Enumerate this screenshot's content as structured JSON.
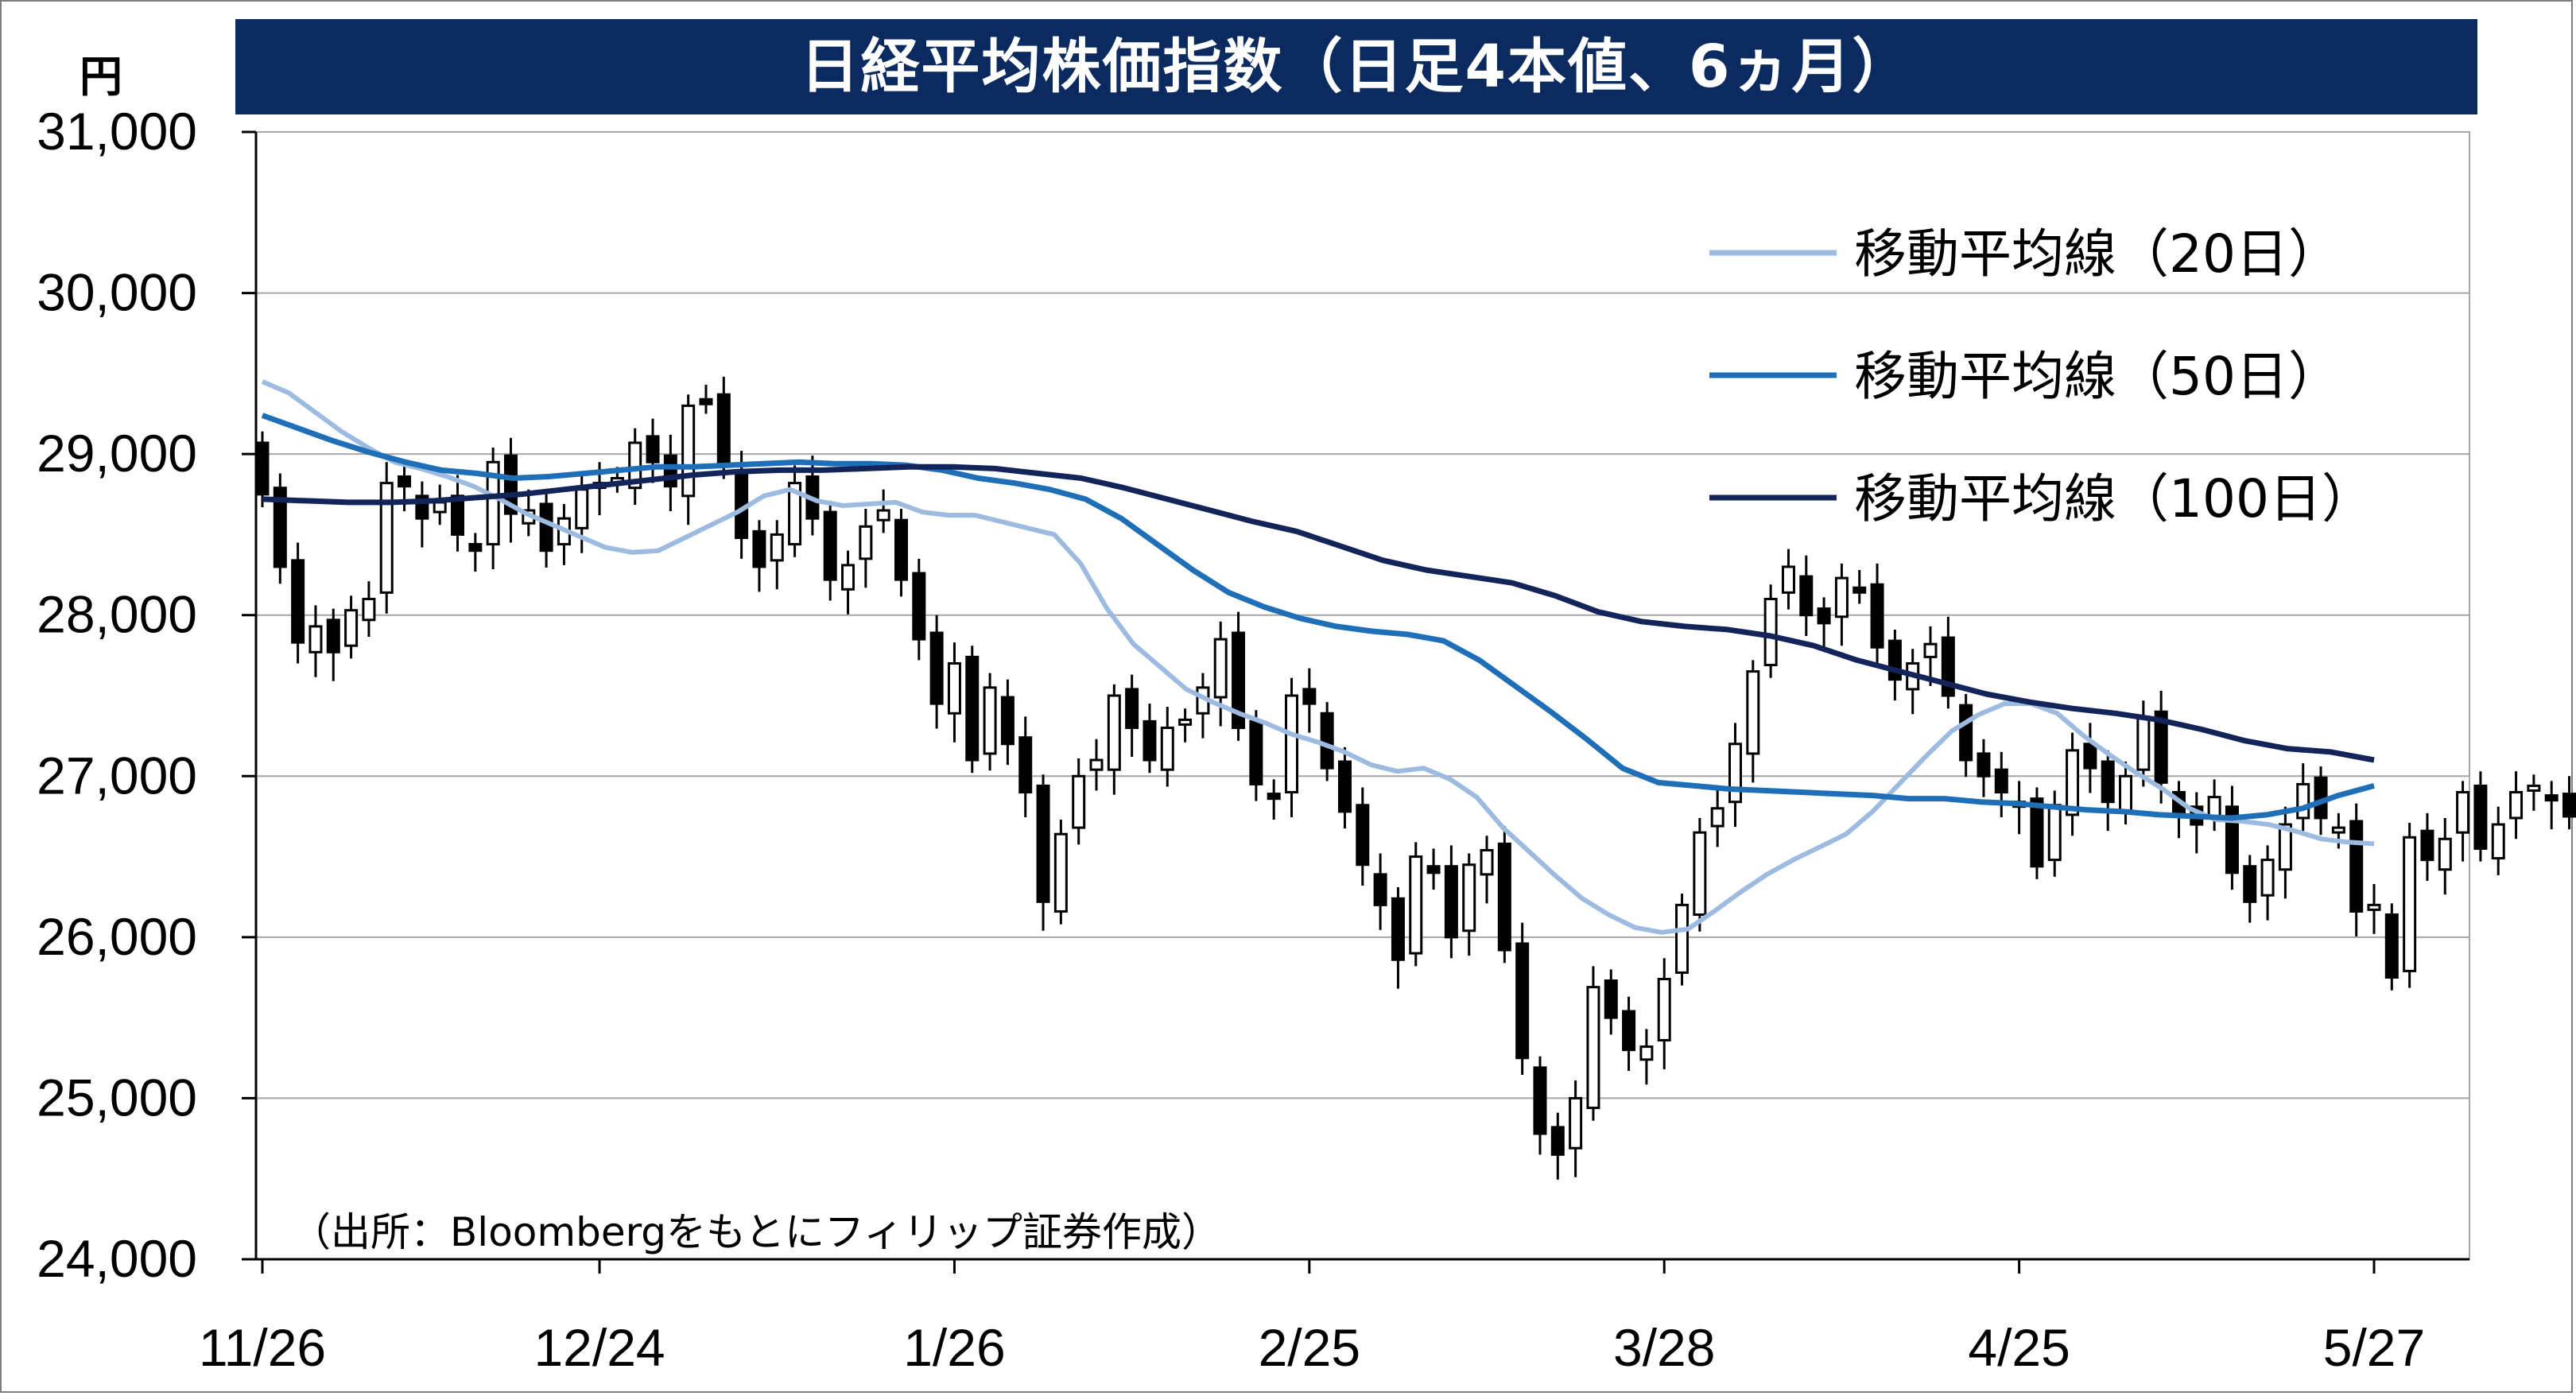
{
  "chart_data": {
    "type": "candlestick",
    "title": "日経平均株価指数（日足4本値、6ヵ月）",
    "unit_label": "円",
    "source_note": "（出所：Bloombergをもとにフィリップ証券作成）",
    "ylim": [
      24000,
      31000
    ],
    "y_ticks": [
      "31,000",
      "30,000",
      "29,000",
      "28,000",
      "27,000",
      "26,000",
      "25,000",
      "24,000"
    ],
    "y_tick_values": [
      31000,
      30000,
      29000,
      28000,
      27000,
      26000,
      25000,
      24000
    ],
    "x_tick_labels": [
      "11/26",
      "12/24",
      "1/26",
      "2/25",
      "3/28",
      "4/25",
      "5/27"
    ],
    "x_tick_index": [
      0,
      19,
      39,
      59,
      79,
      99,
      119
    ],
    "grid": true,
    "legend_position": "top-right",
    "colors": {
      "title_bg": "#0b2a5f",
      "ma20": "#9dbbe0",
      "ma50": "#1f6fb8",
      "ma100": "#12245a",
      "up_fill": "#ffffff",
      "down_fill": "#000000",
      "grid": "#a6a6a6"
    },
    "legend": [
      {
        "key": "ma20",
        "label": "移動平均線（20日）"
      },
      {
        "key": "ma50",
        "label": "移動平均線（50日）"
      },
      {
        "key": "ma100",
        "label": "移動平均線（100日）"
      }
    ],
    "closes": [
      28750,
      28300,
      27830,
      27930,
      27770,
      28030,
      28100,
      28820,
      28800,
      28600,
      28700,
      28500,
      28400,
      28950,
      28630,
      28650,
      28400,
      28600,
      28780,
      28800,
      28850,
      29070,
      28950,
      28800,
      29300,
      29330,
      28950,
      28480,
      28300,
      28500,
      28820,
      28600,
      28220,
      28310,
      28550,
      28650,
      28220,
      27850,
      27450,
      27700,
      27100,
      27550,
      27200,
      26900,
      26220,
      26640,
      27000,
      27100,
      27500,
      27300,
      27100,
      27300,
      27350,
      27550,
      27850,
      27300,
      26950,
      26860,
      27500,
      27450,
      27050,
      26780,
      26450,
      26200,
      25860,
      26500,
      26400,
      26000,
      26450,
      26540,
      25920,
      25250,
      24780,
      24650,
      25000,
      25690,
      25500,
      25300,
      25320,
      25740,
      26200,
      26650,
      26800,
      27200,
      27650,
      28100,
      28300,
      28000,
      27950,
      28230,
      28150,
      27800,
      27600,
      27700,
      27820,
      27500,
      27100,
      27000,
      26900,
      26820,
      26440,
      26820,
      27160,
      27050,
      26840,
      27000,
      27360,
      26960,
      26770,
      26700,
      26870,
      26400,
      26220,
      26480,
      26700,
      26950,
      26740,
      26680,
      26160,
      26200,
      25750,
      26620,
      26480,
      26610,
      26900,
      26550,
      26700,
      26900,
      26940,
      26850,
      26750,
      26860
    ],
    "ohlc_note": "closes estimated from candle tops/bottoms; highs/lows drawn as wicks",
    "ma20": [
      29450,
      29380,
      29260,
      29140,
      29040,
      28950,
      28910,
      28860,
      28800,
      28720,
      28630,
      28560,
      28490,
      28420,
      28390,
      28400,
      28480,
      28560,
      28640,
      28740,
      28780,
      28710,
      28680,
      28690,
      28700,
      28640,
      28620,
      28620,
      28580,
      28540,
      28500,
      28320,
      28040,
      27820,
      27680,
      27540,
      27460,
      27390,
      27330,
      27260,
      27210,
      27150,
      27070,
      27030,
      27050,
      26980,
      26870,
      26680,
      26530,
      26380,
      26240,
      26140,
      26060,
      26030,
      26050,
      26160,
      26280,
      26390,
      26480,
      26560,
      26640,
      26780,
      26950,
      27120,
      27280,
      27380,
      27450,
      27450,
      27390,
      27250,
      27130,
      27020,
      26920,
      26800,
      26730,
      26720,
      26700,
      26660,
      26610,
      26590,
      26580
    ],
    "ma50": [
      29240,
      29160,
      29080,
      29010,
      28950,
      28900,
      28880,
      28850,
      28860,
      28880,
      28900,
      28920,
      28920,
      28930,
      28940,
      28950,
      28940,
      28940,
      28930,
      28900,
      28850,
      28820,
      28780,
      28720,
      28600,
      28440,
      28280,
      28140,
      28050,
      27980,
      27930,
      27900,
      27880,
      27840,
      27720,
      27560,
      27400,
      27230,
      27050,
      26960,
      26940,
      26920,
      26910,
      26900,
      26890,
      26880,
      26860,
      26860,
      26840,
      26830,
      26810,
      26790,
      26780,
      26760,
      26750,
      26740,
      26760,
      26800,
      26880,
      26940
    ],
    "ma100": [
      28720,
      28710,
      28700,
      28700,
      28710,
      28730,
      28750,
      28780,
      28810,
      28840,
      28870,
      28890,
      28900,
      28900,
      28910,
      28920,
      28920,
      28910,
      28880,
      28850,
      28790,
      28720,
      28650,
      28580,
      28520,
      28430,
      28340,
      28280,
      28240,
      28200,
      28120,
      28020,
      27960,
      27930,
      27910,
      27870,
      27810,
      27720,
      27650,
      27580,
      27510,
      27460,
      27420,
      27390,
      27350,
      27290,
      27220,
      27170,
      27150,
      27100
    ]
  }
}
